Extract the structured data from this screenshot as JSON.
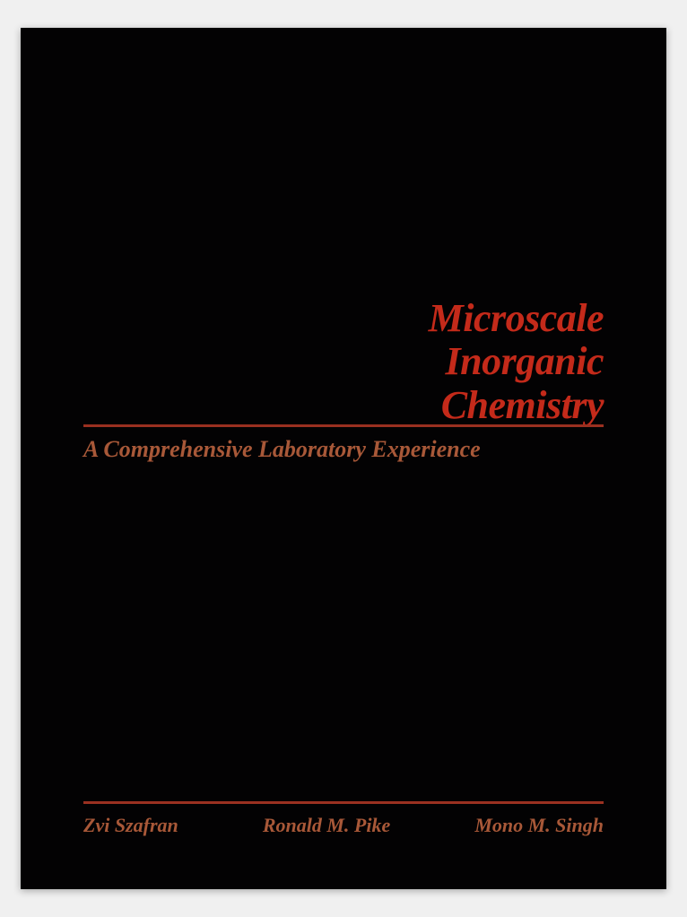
{
  "cover": {
    "background_color": "#030203",
    "title": {
      "line1": "Microscale",
      "line2": "Inorganic",
      "line3": "Chemistry",
      "color": "#c42a1a",
      "fontsize": 44
    },
    "subtitle": {
      "text": "A Comprehensive Laboratory Experience",
      "color": "#a85838",
      "fontsize": 26
    },
    "rule_color": "#9a3020",
    "authors": {
      "color": "#a85838",
      "fontsize": 22,
      "list": [
        "Zvi Szafran",
        "Ronald M. Pike",
        "Mono M. Singh"
      ]
    }
  }
}
